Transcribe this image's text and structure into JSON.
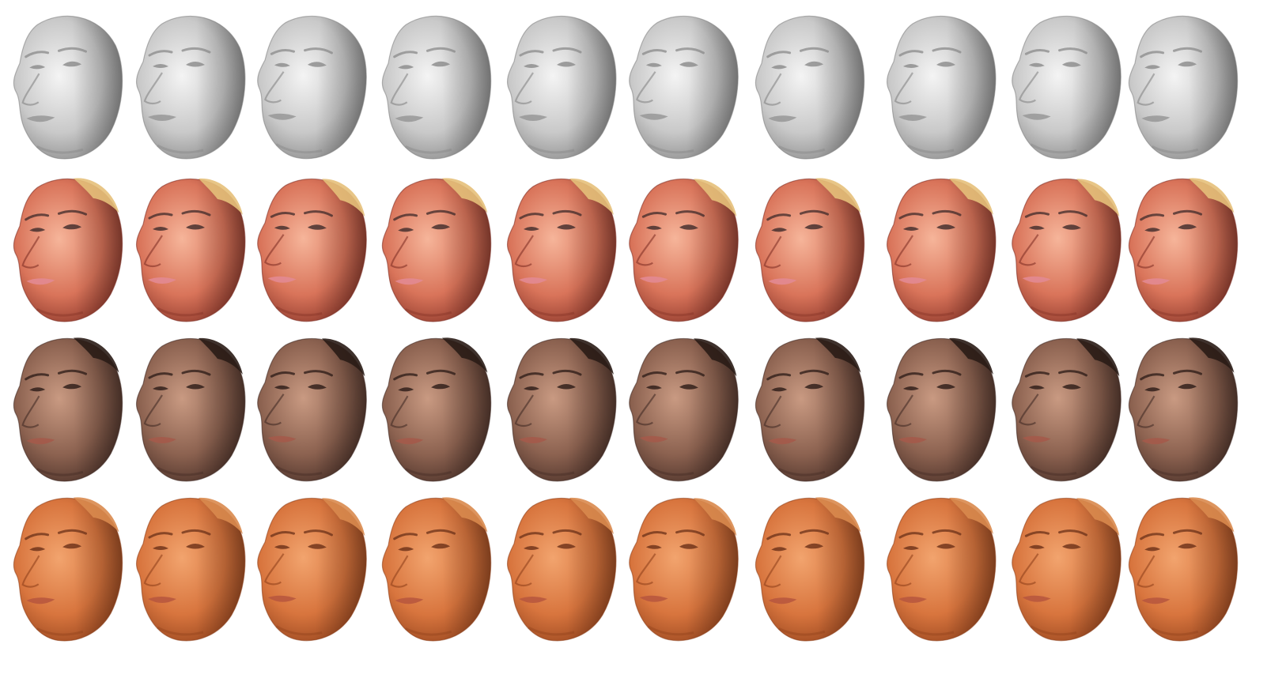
{
  "grid": {
    "columns": 10,
    "rows": [
      {
        "kind": "untextured-geometry",
        "skin_light": "#f4f4f4",
        "skin_mid": "#c9c9c9",
        "skin_dark": "#7d7d7d",
        "feature": "#8a8a8a",
        "lip": "#9a9a9a",
        "hair": "none"
      },
      {
        "kind": "textured-woman-blonde",
        "skin_light": "#f6b59a",
        "skin_mid": "#d9745a",
        "skin_dark": "#7a2a20",
        "feature": "#3d2a2a",
        "lip": "#e28a92",
        "hair": "#e6c07a"
      },
      {
        "kind": "textured-man-dark",
        "skin_light": "#c99a82",
        "skin_mid": "#8c6250",
        "skin_dark": "#3c2620",
        "feature": "#2a1a16",
        "lip": "#a45a4a",
        "hair": "#2a1c16"
      },
      {
        "kind": "textured-man-tan",
        "skin_light": "#f2a46e",
        "skin_mid": "#d8753e",
        "skin_dark": "#8a3c18",
        "feature": "#6a3018",
        "lip": "#b8583e",
        "hair": "#d98a4e"
      }
    ]
  }
}
